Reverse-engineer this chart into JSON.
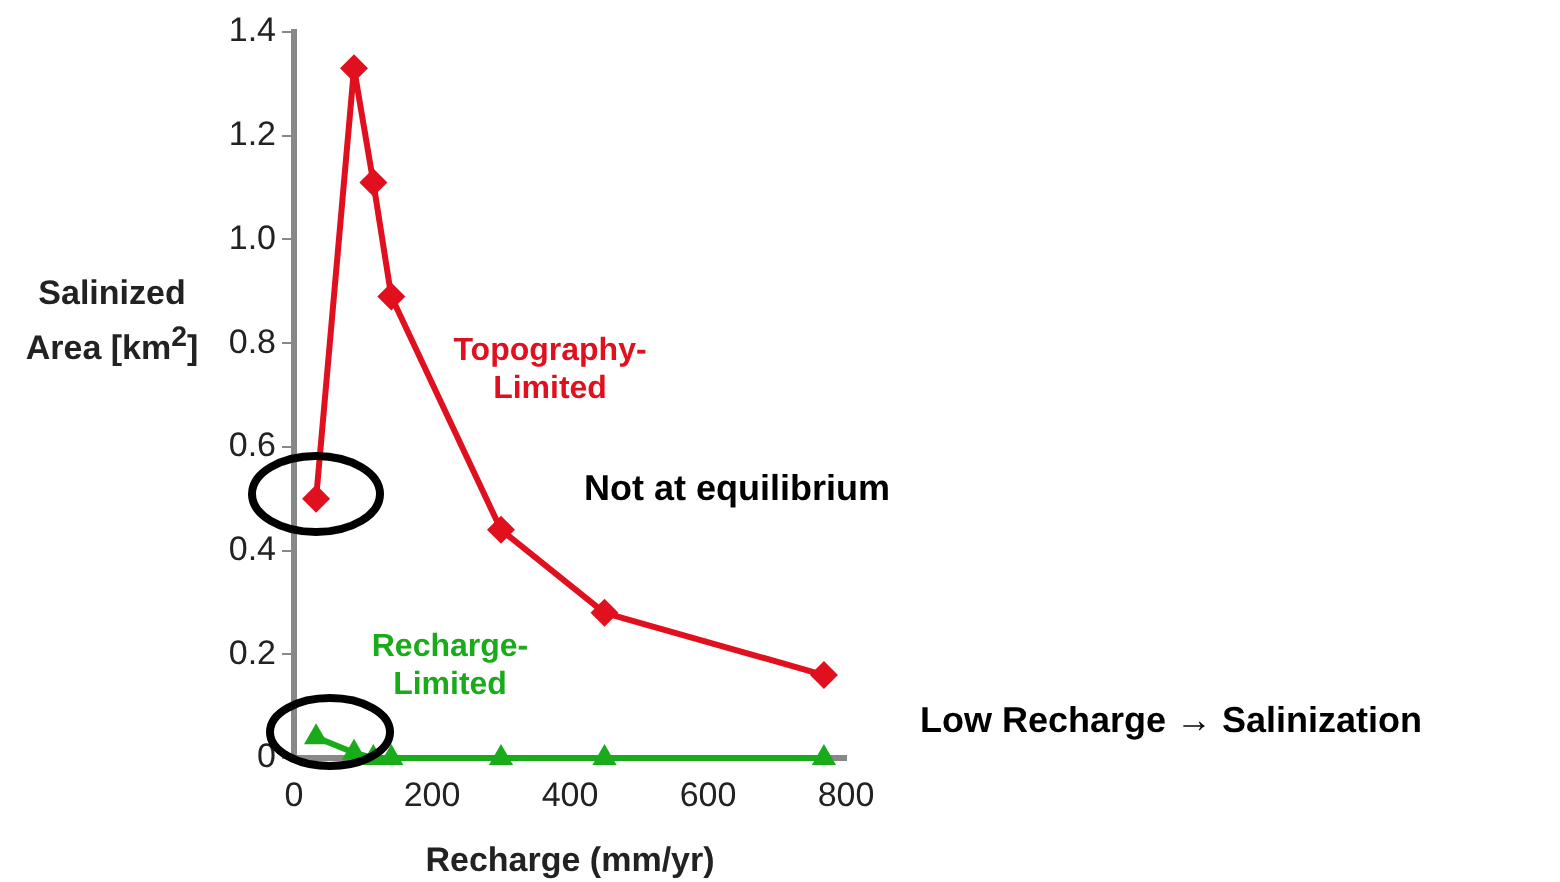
{
  "chart_data": {
    "type": "line",
    "xlabel": "Recharge (mm/yr)",
    "ylabel": "Salinized Area [km$^{2}$]",
    "annotations": [
      "Not at equilibrium",
      "Low Recharge → Salinization"
    ],
    "xlim": [
      0,
      800
    ],
    "xticks": [
      0,
      200,
      400,
      600,
      800
    ],
    "ylim": [
      0,
      1.4
    ],
    "yticks": [
      0,
      0.2,
      0.4,
      0.6,
      0.8,
      {
        "value": 1,
        "label": "1.0"
      },
      1.2,
      1.4
    ],
    "grid": false,
    "legend": false,
    "series": [
      {
        "name": "Topography-Limited",
        "color": "#e0101e",
        "marker": "diamond",
        "x": [
          32,
          87,
          115,
          141,
          300,
          450,
          768
        ],
        "values": [
          0.5,
          1.33,
          1.11,
          0.89,
          0.44,
          0.28,
          0.16
        ]
      },
      {
        "name": "Recharge-Limited",
        "color": "#1aab1a",
        "marker": "triangle",
        "x": [
          32,
          87,
          115,
          141,
          300,
          450,
          768
        ],
        "values": [
          0.04,
          0.01,
          0,
          0,
          0,
          0,
          0
        ]
      }
    ]
  }
}
